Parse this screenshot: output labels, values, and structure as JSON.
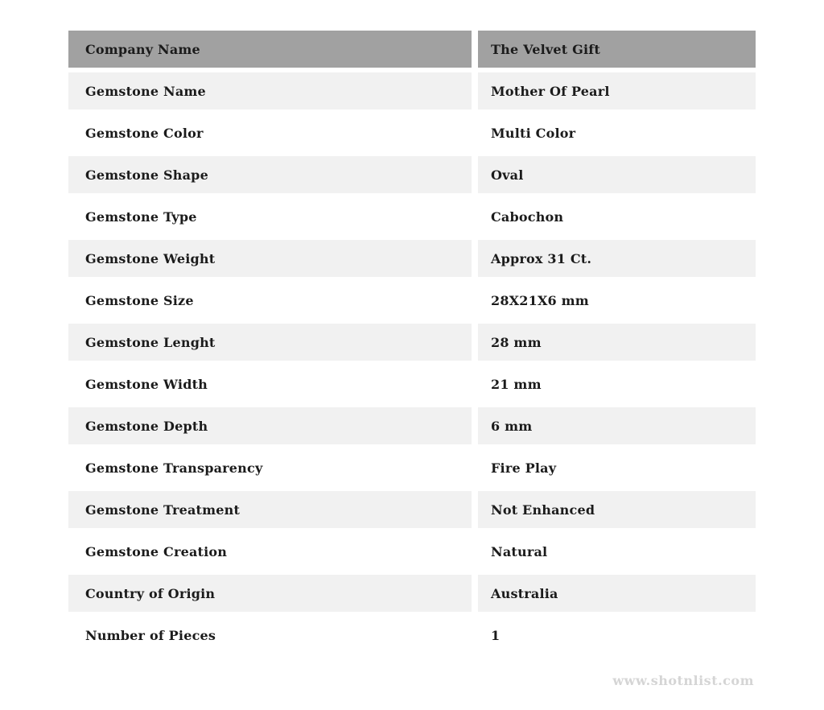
{
  "colors": {
    "header_bg": "#a1a1a1",
    "row_alt_bg": "#f1f1f1",
    "row_bg": "#ffffff",
    "text": "#1b1b1b",
    "watermark_text": "#d5d5d5"
  },
  "table": {
    "header": {
      "label": "Company Name",
      "value": "The Velvet Gift"
    },
    "rows": [
      {
        "label": "Gemstone Name",
        "value": "Mother Of Pearl"
      },
      {
        "label": "Gemstone Color",
        "value": "Multi Color"
      },
      {
        "label": "Gemstone Shape",
        "value": "Oval"
      },
      {
        "label": "Gemstone Type",
        "value": "Cabochon"
      },
      {
        "label": "Gemstone Weight",
        "value": "Approx 31 Ct."
      },
      {
        "label": "Gemstone Size",
        "value": "28X21X6 mm"
      },
      {
        "label": "Gemstone Lenght",
        "value": "28 mm"
      },
      {
        "label": "Gemstone Width",
        "value": "21 mm"
      },
      {
        "label": "Gemstone Depth",
        "value": "6 mm"
      },
      {
        "label": "Gemstone Transparency",
        "value": "Fire Play"
      },
      {
        "label": "Gemstone Treatment",
        "value": "Not Enhanced"
      },
      {
        "label": "Gemstone Creation",
        "value": "Natural"
      },
      {
        "label": "Country of Origin",
        "value": "Australia"
      },
      {
        "label": "Number of Pieces",
        "value": "1"
      }
    ]
  },
  "footer": {
    "watermark": "www.shotnlist.com"
  }
}
